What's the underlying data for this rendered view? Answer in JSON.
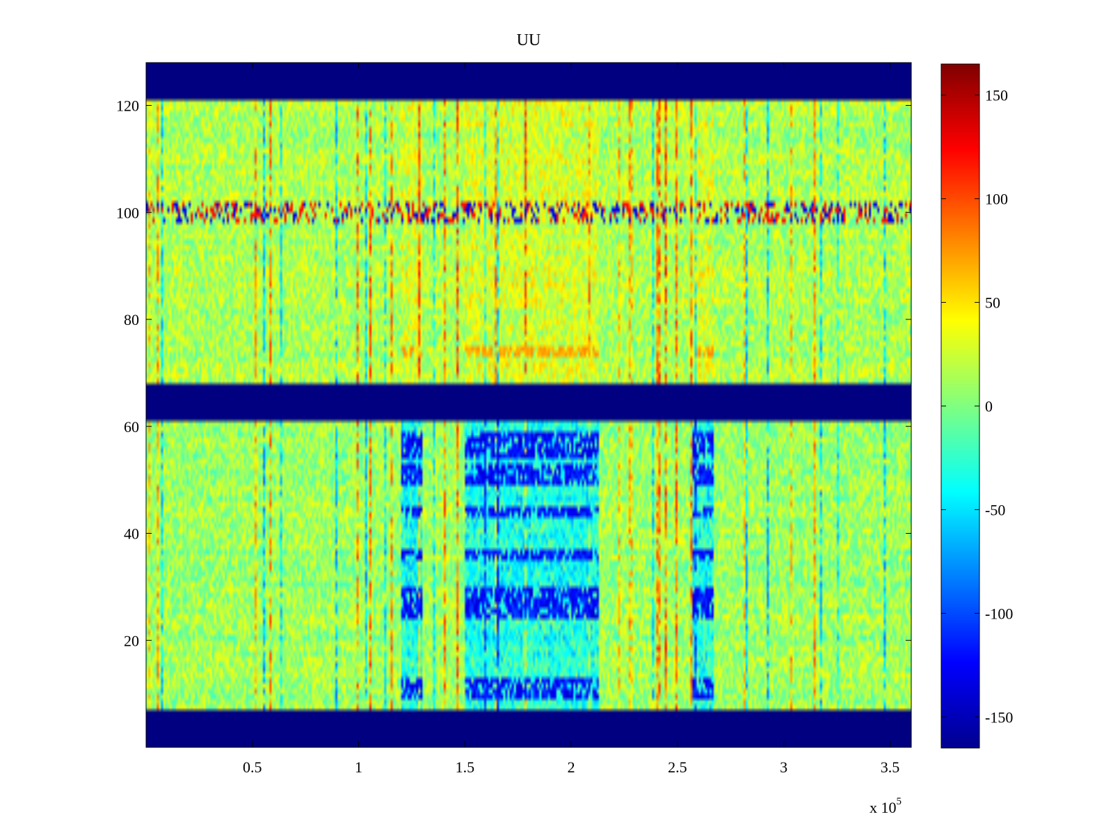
{
  "chart_data": {
    "type": "heatmap",
    "title": "UU",
    "xlabel": "",
    "ylabel": "",
    "x_exponent_label": "x 10",
    "x_exponent_power": "5",
    "xlim": [
      0,
      3.6
    ],
    "ylim": [
      0,
      128
    ],
    "x_ticks": [
      0.5,
      1,
      1.5,
      2,
      2.5,
      3,
      3.5
    ],
    "x_tick_labels": [
      "0.5",
      "1",
      "1.5",
      "2",
      "2.5",
      "3",
      "3.5"
    ],
    "y_ticks": [
      20,
      40,
      60,
      80,
      100,
      120
    ],
    "y_tick_labels": [
      "20",
      "40",
      "60",
      "80",
      "100",
      "120"
    ],
    "colorbar": {
      "colormap": "jet",
      "range": [
        -165,
        165
      ],
      "ticks": [
        -150,
        -100,
        -50,
        0,
        50,
        100,
        150
      ],
      "tick_labels": [
        "-150",
        "-100",
        "-50",
        "0",
        "50",
        "100",
        "150"
      ]
    },
    "masked_row_bands": [
      {
        "from": 0,
        "to": 7,
        "value": -165
      },
      {
        "from": 61,
        "to": 68,
        "value": -165
      },
      {
        "from": 121,
        "to": 128,
        "value": -165
      }
    ],
    "background_mean": {
      "upper_block_rows_68_121": 15,
      "lower_block_rows_7_61": 10
    },
    "anomaly_x_ranges": [
      {
        "from": 1.2,
        "to": 1.3
      },
      {
        "from": 1.5,
        "to": 2.13
      },
      {
        "from": 2.57,
        "to": 2.67
      }
    ],
    "anomaly_values": {
      "lower_block_strong_rows": [
        10,
        12,
        25,
        27,
        29,
        36,
        44,
        50,
        52,
        55,
        57,
        58
      ],
      "lower_block_value": -120,
      "upper_block_warm_row": 74,
      "upper_block_warm_value": 70,
      "row_100_spike_values": [
        -130,
        120
      ]
    },
    "grid": false,
    "legend": "none"
  }
}
